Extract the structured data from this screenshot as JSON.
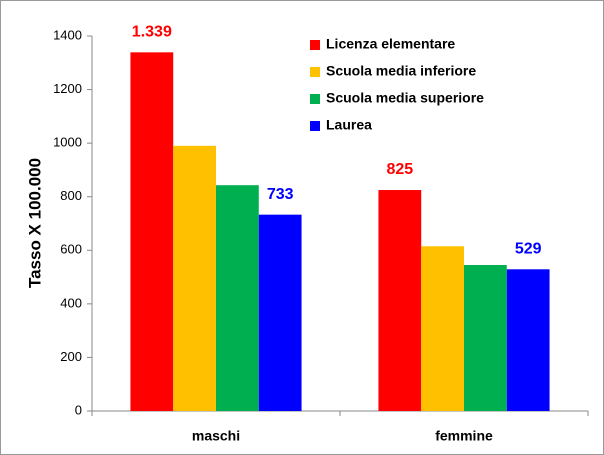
{
  "chart_data": {
    "type": "bar",
    "y_label": "Tasso X 100.000",
    "categories": [
      "maschi",
      "femmine"
    ],
    "series": [
      {
        "name": "Licenza elementare",
        "color": "#ff0000",
        "values": [
          1339,
          825
        ],
        "value_labels": [
          "1.339",
          "825"
        ]
      },
      {
        "name": "Scuola media inferiore",
        "color": "#ffc000",
        "values": [
          990,
          615
        ]
      },
      {
        "name": "Scuola media superiore",
        "color": "#00b050",
        "values": [
          843,
          545
        ]
      },
      {
        "name": "Laurea",
        "color": "#0000ff",
        "values": [
          733,
          529
        ],
        "data_labels": true
      }
    ],
    "ylim": [
      0,
      1400
    ],
    "yticks": [
      0,
      200,
      400,
      600,
      800,
      1000,
      1200,
      1400
    ],
    "grid": false,
    "legend": "top-right"
  }
}
